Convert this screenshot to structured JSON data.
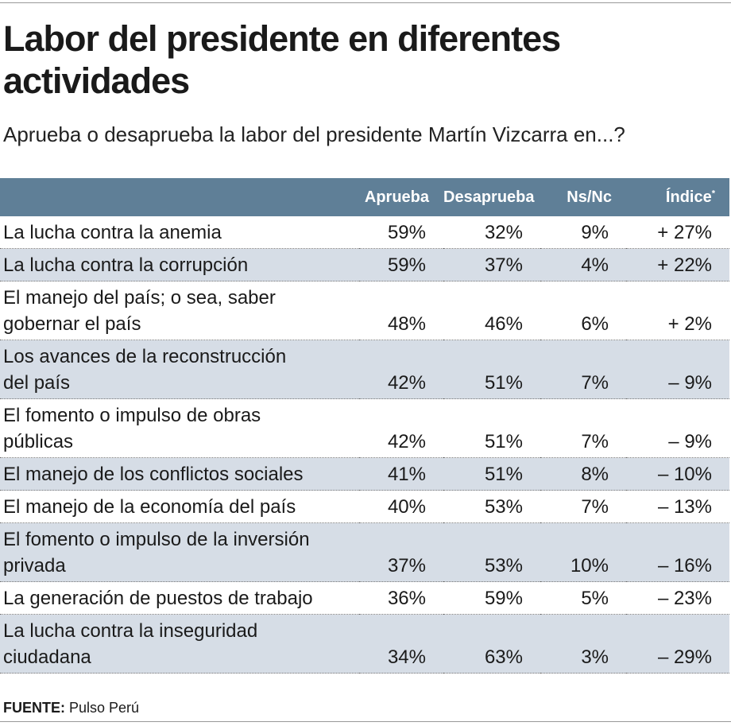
{
  "header": {
    "title": [
      "Labor del presidente en diferentes",
      "actividades"
    ],
    "subtitle": "Aprueba o desaprueba la labor del presidente Martín Vizcarra en...?"
  },
  "table": {
    "columns": [
      "Aprueba",
      "Desaprueba",
      "Ns/Nc",
      "Índice"
    ],
    "column_note_mark": "*",
    "rows": [
      [
        [
          "La lucha contra la anemia"
        ],
        "59%",
        "32%",
        "9%",
        "+ 27%"
      ],
      [
        [
          "La lucha contra la corrupción"
        ],
        "59%",
        "37%",
        "4%",
        "+ 22%"
      ],
      [
        [
          "El manejo del país; o sea, saber",
          "gobernar el país"
        ],
        "48%",
        "46%",
        "6%",
        "+ 2%"
      ],
      [
        [
          "Los avances de la reconstrucción",
          "del país"
        ],
        "42%",
        "51%",
        "7%",
        "– 9%"
      ],
      [
        [
          "El fomento o impulso de obras",
          "públicas"
        ],
        "42%",
        "51%",
        "7%",
        "– 9%"
      ],
      [
        [
          "El manejo de los conflictos sociales"
        ],
        "41%",
        "51%",
        "8%",
        "– 10%"
      ],
      [
        [
          "El manejo de la economía del país"
        ],
        "40%",
        "53%",
        "7%",
        "– 13%"
      ],
      [
        [
          "El fomento o impulso de la inversión",
          "privada"
        ],
        "37%",
        "53%",
        "10%",
        "– 16%"
      ],
      [
        [
          "La generación de puestos de trabajo"
        ],
        "36%",
        "59%",
        "5%",
        "– 23%"
      ],
      [
        [
          "La lucha contra la inseguridad",
          "ciudadana"
        ],
        "34%",
        "63%",
        "3%",
        "– 29%"
      ]
    ]
  },
  "source": {
    "label": "FUENTE:",
    "text": "Pulso Perú"
  }
}
